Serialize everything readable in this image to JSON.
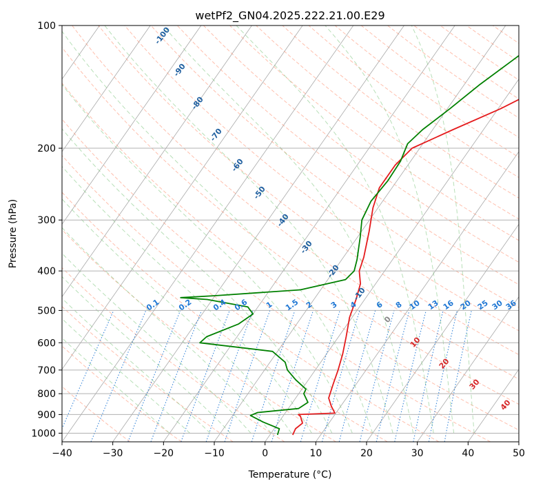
{
  "chart_data": {
    "type": "line",
    "title": "wetPf2_GN04.2025.222.21.00.E29",
    "xlabel": "Temperature (°C)",
    "ylabel": "Pressure (hPa)",
    "xlim": [
      -40,
      50
    ],
    "ylim": [
      1050,
      100
    ],
    "y_scale": "log",
    "grid": true,
    "x_ticks": [
      -40,
      -30,
      -20,
      -10,
      0,
      10,
      20,
      30,
      40,
      50
    ],
    "y_ticks": [
      1000,
      900,
      800,
      700,
      600,
      500,
      400,
      300,
      200,
      100
    ],
    "x_tick_labels": [
      "−40",
      "−30",
      "−20",
      "−10",
      "0",
      "10",
      "20",
      "30",
      "40",
      "50"
    ],
    "y_tick_labels": [
      "1000",
      "900",
      "800",
      "700",
      "600",
      "500",
      "400",
      "300",
      "200",
      "100"
    ],
    "series": [
      {
        "color": "#e41a1c",
        "points": [
          [
            4.5,
            1010
          ],
          [
            4.2,
            975
          ],
          [
            4.8,
            945
          ],
          [
            3.5,
            910
          ],
          [
            2.8,
            900
          ],
          [
            9.8,
            893
          ],
          [
            8.2,
            860
          ],
          [
            6.5,
            820
          ],
          [
            5.5,
            760
          ],
          [
            4.5,
            700
          ],
          [
            3.2,
            640
          ],
          [
            1.5,
            580
          ],
          [
            -0.5,
            520
          ],
          [
            -1.7,
            470
          ],
          [
            -3.0,
            430
          ],
          [
            -5.0,
            400
          ],
          [
            -6.0,
            370
          ],
          [
            -8.5,
            320
          ],
          [
            -11.0,
            280
          ],
          [
            -12.5,
            250
          ],
          [
            -12.5,
            220
          ],
          [
            -11.5,
            200
          ],
          [
            -6.0,
            180
          ],
          [
            0.5,
            160
          ],
          [
            6.5,
            140
          ],
          [
            10.0,
            120
          ],
          [
            15.5,
            100
          ]
        ]
      },
      {
        "color": "#008000",
        "points": [
          [
            1.5,
            1010
          ],
          [
            1.0,
            975
          ],
          [
            -3.0,
            940
          ],
          [
            -6.5,
            905
          ],
          [
            -5.5,
            890
          ],
          [
            2.0,
            870
          ],
          [
            3.0,
            840
          ],
          [
            1.0,
            800
          ],
          [
            0.8,
            780
          ],
          [
            -2.5,
            740
          ],
          [
            -5.5,
            700
          ],
          [
            -7.0,
            670
          ],
          [
            -11.0,
            630
          ],
          [
            -26.5,
            600
          ],
          [
            -26.0,
            580
          ],
          [
            -21.5,
            540
          ],
          [
            -20.0,
            510
          ],
          [
            -22.0,
            490
          ],
          [
            -31.0,
            470
          ],
          [
            -36.5,
            465
          ],
          [
            -30.0,
            460
          ],
          [
            -14.0,
            445
          ],
          [
            -6.5,
            420
          ],
          [
            -6.0,
            400
          ],
          [
            -7.0,
            375
          ],
          [
            -9.5,
            330
          ],
          [
            -11.5,
            300
          ],
          [
            -12.3,
            270
          ],
          [
            -11.8,
            240
          ],
          [
            -12.0,
            215
          ],
          [
            -12.5,
            205
          ],
          [
            -13.0,
            195
          ],
          [
            -12.0,
            180
          ],
          [
            -9.5,
            160
          ],
          [
            -7.0,
            140
          ],
          [
            -3.5,
            120
          ],
          [
            0.5,
            100
          ]
        ]
      }
    ],
    "annotations": {
      "dry_adiabats": [
        -100,
        -90,
        -80,
        -70,
        -60,
        -50,
        -40,
        -30,
        -20,
        -10
      ],
      "mixing_ratios": [
        "0.1",
        "0.2",
        "0.4",
        "0.6",
        "1",
        "1.5",
        "2",
        "3",
        "4",
        "6",
        "8",
        "10",
        "13",
        "16",
        "20",
        "25",
        "30",
        "36"
      ],
      "moist_adiabats": [
        "0",
        "10",
        "20",
        "30",
        "40"
      ]
    },
    "colors": {
      "temperature": "#e41a1c",
      "dewpoint": "#008000",
      "isotherm": "#999999",
      "dry_adiabat": "#ff8a6a",
      "moist_adiabat": "#7cc47c",
      "mixing_ratio": "#1f77d4",
      "dry_label": "#1f5f9f",
      "moist_label": "#d62728"
    }
  }
}
